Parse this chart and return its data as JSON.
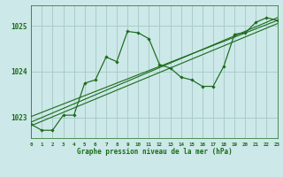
{
  "background_color": "#cce8e8",
  "grid_color": "#aacccc",
  "line_color": "#1a6b1a",
  "title": "Graphe pression niveau de la mer (hPa)",
  "xlim": [
    0,
    23
  ],
  "ylim": [
    1022.55,
    1025.45
  ],
  "yticks": [
    1023,
    1024,
    1025
  ],
  "xticks": [
    0,
    1,
    2,
    3,
    4,
    5,
    6,
    7,
    8,
    9,
    10,
    11,
    12,
    13,
    14,
    15,
    16,
    17,
    18,
    19,
    20,
    21,
    22,
    23
  ],
  "main_x": [
    0,
    1,
    2,
    3,
    4,
    5,
    6,
    7,
    8,
    9,
    10,
    11,
    12,
    13,
    14,
    15,
    16,
    17,
    18,
    19,
    20,
    21,
    22,
    23
  ],
  "main_y": [
    1022.85,
    1022.72,
    1022.72,
    1023.05,
    1023.05,
    1023.75,
    1023.82,
    1024.32,
    1024.22,
    1024.88,
    1024.85,
    1024.72,
    1024.15,
    1024.08,
    1023.88,
    1023.82,
    1023.68,
    1023.68,
    1024.12,
    1024.82,
    1024.85,
    1025.08,
    1025.18,
    1025.12
  ],
  "line1_x": [
    0,
    23
  ],
  "line1_y": [
    1022.82,
    1025.05
  ],
  "line2_x": [
    0,
    23
  ],
  "line2_y": [
    1022.9,
    1025.18
  ],
  "line3_x": [
    0,
    23
  ],
  "line3_y": [
    1023.02,
    1025.12
  ]
}
